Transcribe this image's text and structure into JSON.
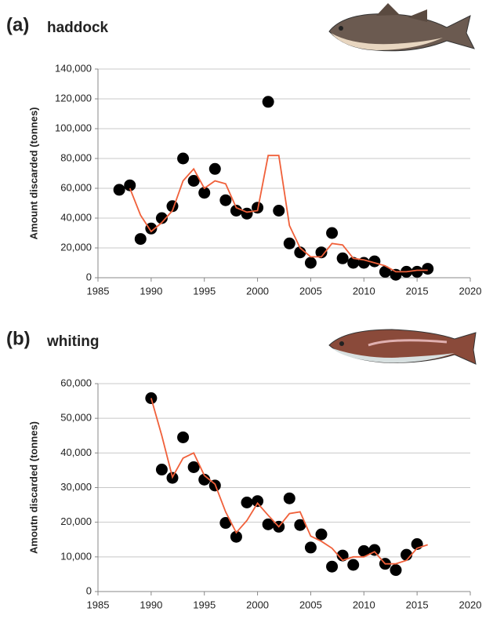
{
  "chart_data": [
    {
      "type": "scatter",
      "panel_label": "(a)",
      "title": "haddock",
      "y_label": "Amount discarded (tonnes)",
      "xlim": [
        1985,
        2020
      ],
      "xticks": [
        1985,
        1990,
        1995,
        2000,
        2005,
        2010,
        2015,
        2020
      ],
      "ylim": [
        0,
        140000
      ],
      "yticks": [
        0,
        {
          "value": 20000,
          "label": "20,000"
        },
        {
          "value": 40000,
          "label": "40,000"
        },
        {
          "value": 60000,
          "label": "60,000"
        },
        {
          "value": 80000,
          "label": "80,000"
        },
        {
          "value": 100000,
          "label": "100,000"
        },
        {
          "value": 120000,
          "label": "120,000"
        },
        {
          "value": 140000,
          "label": "140,000"
        }
      ],
      "grid": true,
      "series": [
        {
          "type": "scatter",
          "color": "#000000",
          "x": [
            1987,
            1988,
            1989,
            1990,
            1991,
            1992,
            1993,
            1994,
            1995,
            1996,
            1997,
            1998,
            1999,
            2000,
            2001,
            2002,
            2003,
            2004,
            2005,
            2006,
            2007,
            2008,
            2009,
            2010,
            2011,
            2012,
            2013,
            2014,
            2015,
            2016
          ],
          "values": [
            59000,
            62000,
            26000,
            33000,
            40000,
            48000,
            80000,
            65000,
            57000,
            73000,
            52000,
            45000,
            43000,
            47000,
            118000,
            45000,
            23000,
            17000,
            10000,
            17000,
            30000,
            13000,
            10000,
            10000,
            11000,
            4000,
            2000,
            4000,
            4000,
            6000
          ]
        },
        {
          "type": "line",
          "color": "#f0603a",
          "x": [
            1988,
            1989,
            1990,
            1991,
            1992,
            1993,
            1994,
            1995,
            1996,
            1997,
            1998,
            1999,
            2000,
            2001,
            2002,
            2003,
            2004,
            2005,
            2006,
            2007,
            2008,
            2009,
            2010,
            2011,
            2012,
            2013,
            2014,
            2015,
            2016
          ],
          "values": [
            60000,
            42000,
            31000,
            37000,
            45000,
            65000,
            73000,
            60000,
            65000,
            63000,
            47000,
            44000,
            45000,
            82000,
            82000,
            35000,
            20000,
            14000,
            14000,
            23000,
            22000,
            13000,
            12000,
            10000,
            8000,
            4000,
            4000,
            5000,
            5000
          ]
        }
      ]
    },
    {
      "type": "scatter",
      "panel_label": "(b)",
      "title": "whiting",
      "y_label": "Amoutn discarded (tonnes)",
      "xlim": [
        1985,
        2020
      ],
      "xticks": [
        1985,
        1990,
        1995,
        2000,
        2005,
        2010,
        2015,
        2020
      ],
      "ylim": [
        0,
        60000
      ],
      "yticks": [
        0,
        {
          "value": 10000,
          "label": "10,000"
        },
        {
          "value": 20000,
          "label": "20,000"
        },
        {
          "value": 30000,
          "label": "30,000"
        },
        {
          "value": 40000,
          "label": "40,000"
        },
        {
          "value": 50000,
          "label": "50,000"
        },
        {
          "value": 60000,
          "label": "60,000"
        }
      ],
      "grid": true,
      "series": [
        {
          "type": "scatter",
          "color": "#000000",
          "x": [
            1990,
            1991,
            1992,
            1993,
            1994,
            1995,
            1996,
            1997,
            1998,
            1999,
            2000,
            2001,
            2002,
            2003,
            2004,
            2005,
            2006,
            2007,
            2008,
            2009,
            2010,
            2011,
            2012,
            2013,
            2014,
            2015
          ],
          "values": [
            55800,
            35200,
            32800,
            44500,
            35900,
            32300,
            30600,
            19800,
            15800,
            25700,
            26100,
            19400,
            18700,
            26900,
            19200,
            12700,
            16500,
            7200,
            10400,
            7700,
            11700,
            12000,
            8000,
            6200,
            10600,
            13700
          ]
        },
        {
          "type": "line",
          "color": "#f0603a",
          "x": [
            1990,
            1991,
            1992,
            1993,
            1994,
            1995,
            1996,
            1997,
            1998,
            1999,
            2000,
            2001,
            2002,
            2003,
            2004,
            2005,
            2006,
            2007,
            2008,
            2009,
            2010,
            2011,
            2012,
            2013,
            2014,
            2015,
            2016
          ],
          "values": [
            55800,
            45000,
            33000,
            38500,
            40000,
            33500,
            31000,
            23000,
            17000,
            20500,
            25500,
            22000,
            18700,
            22500,
            23000,
            16000,
            14500,
            12500,
            9000,
            10000,
            10000,
            11500,
            8000,
            8000,
            9000,
            12500,
            13500
          ]
        }
      ]
    }
  ]
}
